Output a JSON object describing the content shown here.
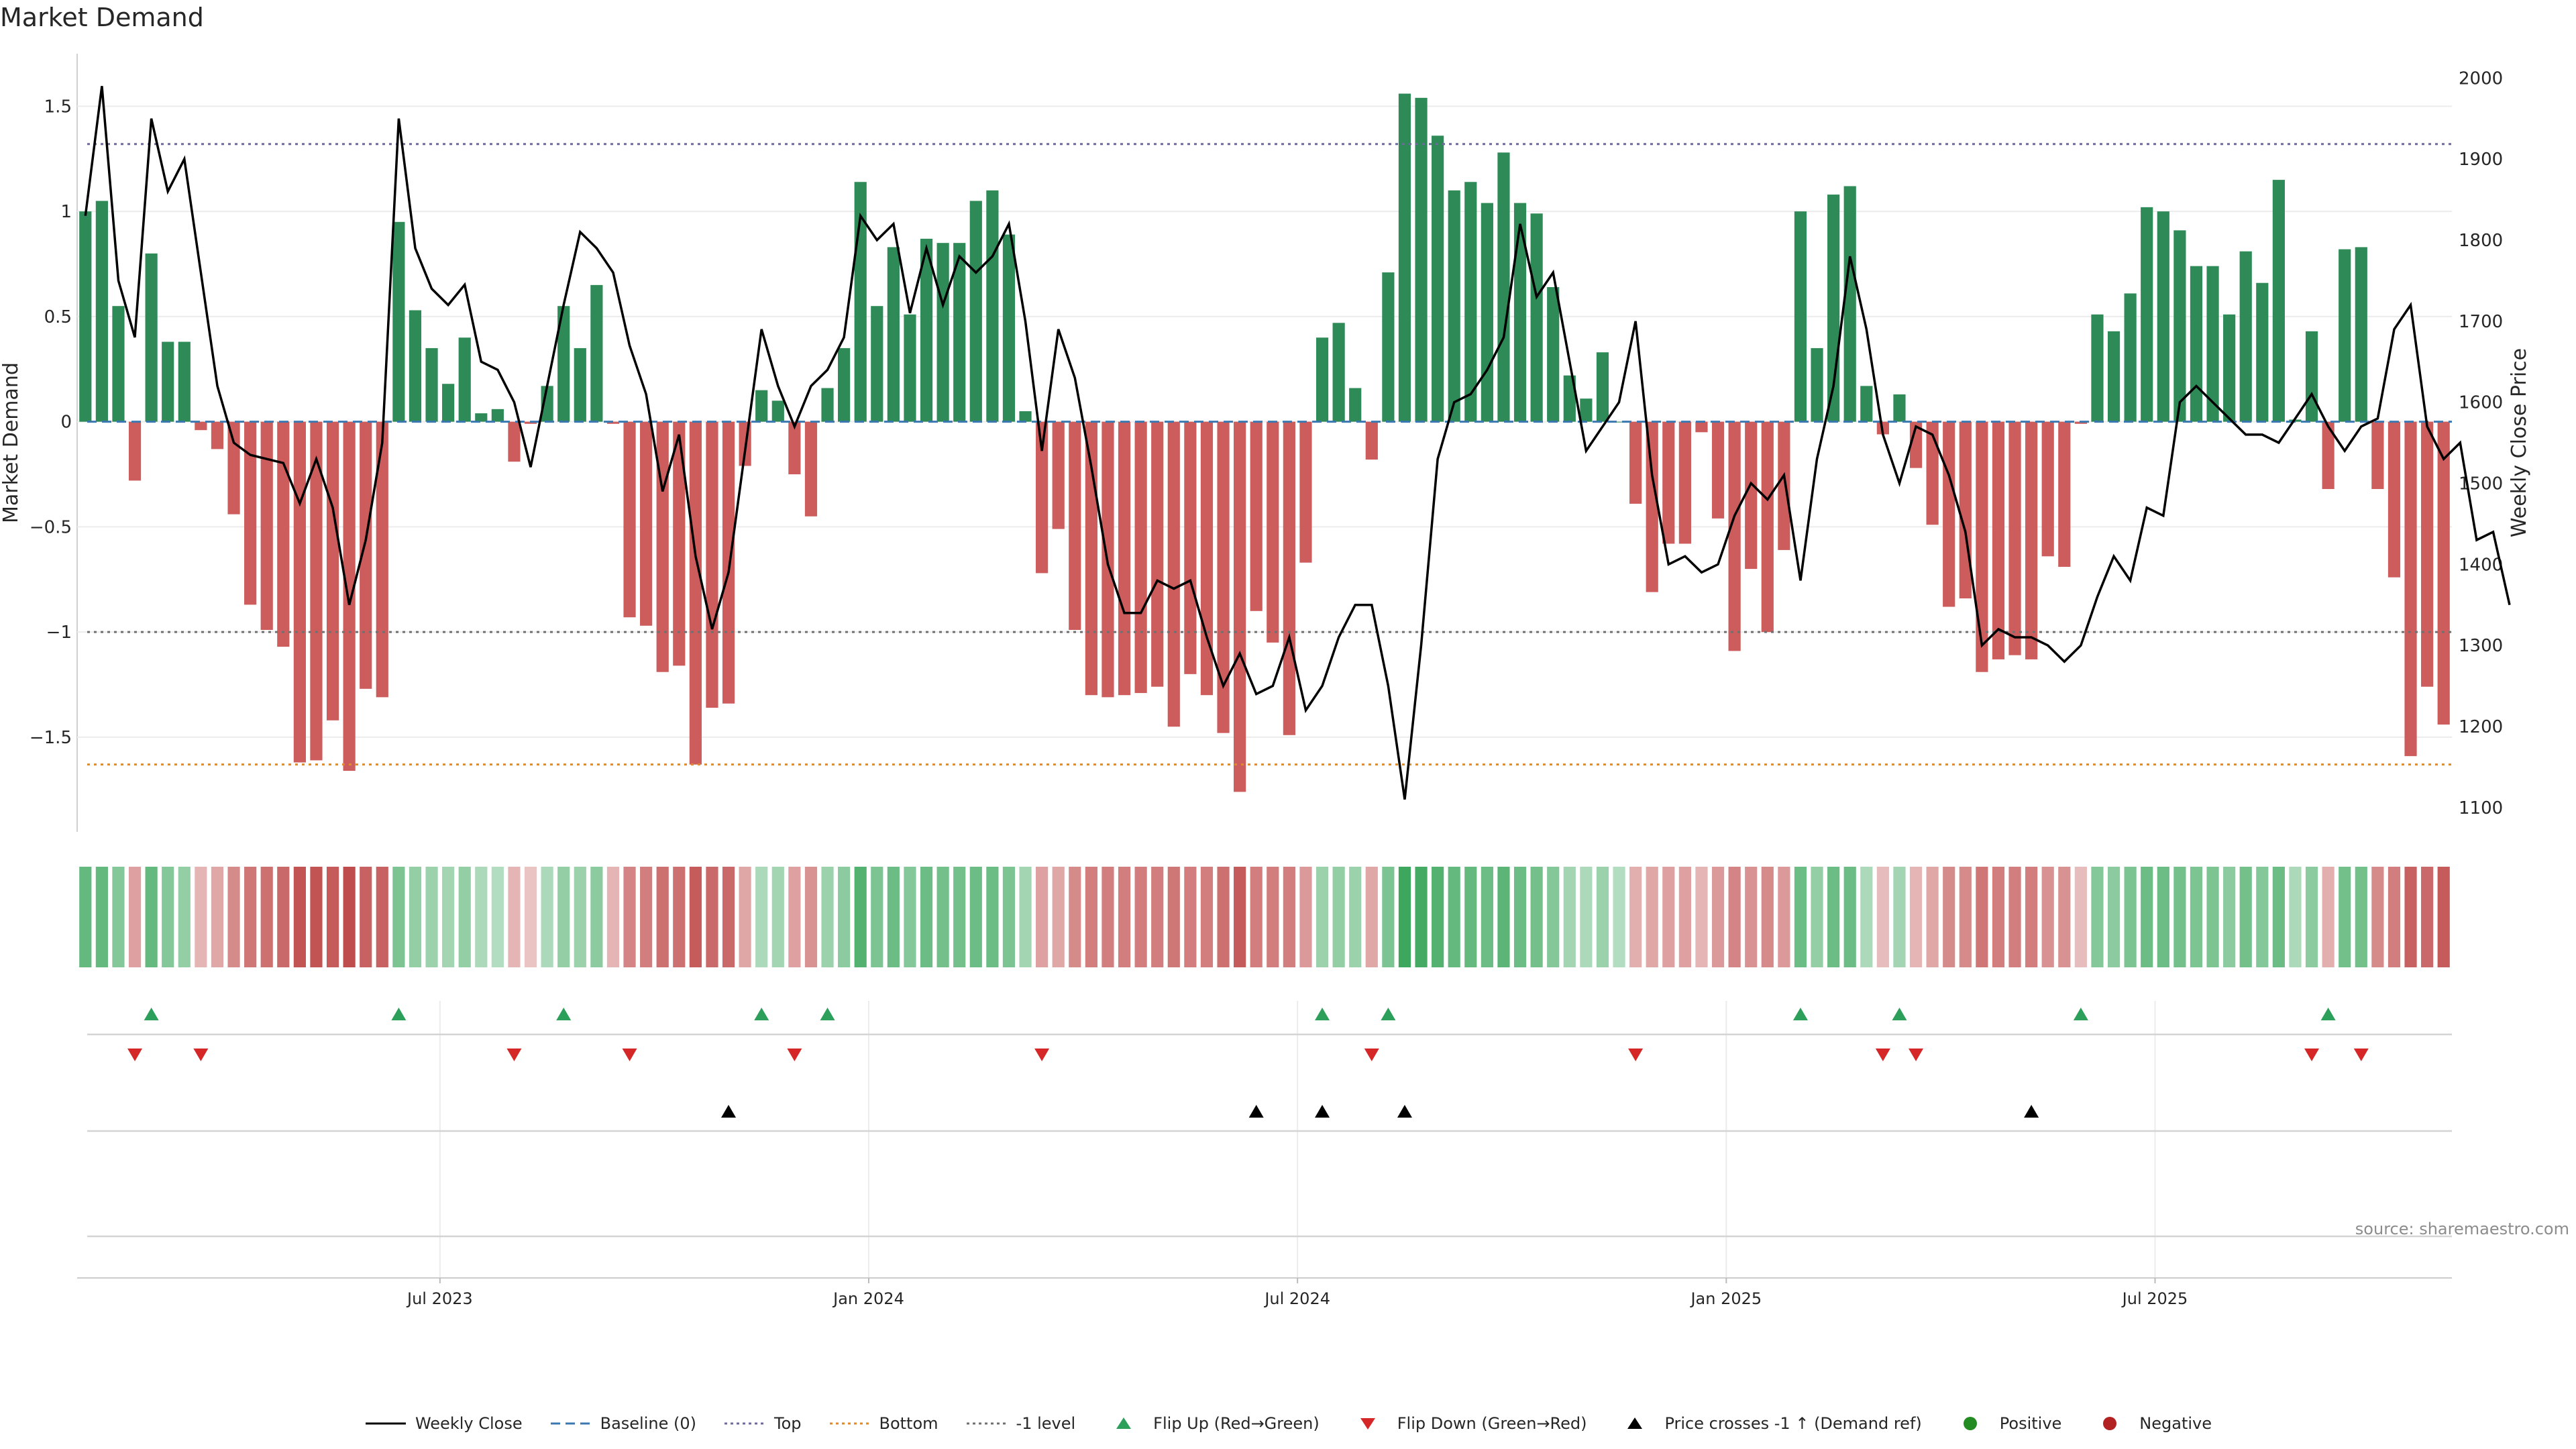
{
  "title": "Market Demand",
  "source": "source: sharemaestro.com",
  "legend": [
    {
      "key": "weekly_close",
      "label": "Weekly Close",
      "symbol": "line",
      "color": "#000000"
    },
    {
      "key": "baseline",
      "label": "Baseline (0)",
      "symbol": "dash",
      "color": "#3b78b0"
    },
    {
      "key": "top",
      "label": "Top",
      "symbol": "dot",
      "color": "#6e6a9e"
    },
    {
      "key": "bottom",
      "label": "Bottom",
      "symbol": "dot",
      "color": "#e08a2e"
    },
    {
      "key": "minus1",
      "label": "-1 level",
      "symbol": "dot",
      "color": "#707070"
    },
    {
      "key": "flip_up",
      "label": "Flip Up (Red→Green)",
      "symbol": "tri-up",
      "color": "#2ca05a"
    },
    {
      "key": "flip_down",
      "label": "Flip Down (Green→Red)",
      "symbol": "tri-down",
      "color": "#d62728"
    },
    {
      "key": "cross",
      "label": "Price crosses -1 ↑ (Demand ref)",
      "symbol": "tri-up",
      "color": "#000000"
    },
    {
      "key": "positive",
      "label": "Positive",
      "symbol": "circle",
      "color": "#228b22"
    },
    {
      "key": "negative",
      "label": "Negative",
      "symbol": "circle",
      "color": "#b22222"
    }
  ],
  "chart_data": {
    "type": "bar",
    "title": "Market Demand",
    "ylabel": "Market Demand",
    "y2label": "Weekly Close Price",
    "ylim": [
      -1.95,
      1.75
    ],
    "y2lim": [
      1070,
      2030
    ],
    "yticks": [
      -1.5,
      -1,
      -0.5,
      0,
      0.5,
      1,
      1.5
    ],
    "ytick_labels": [
      "−1.5",
      "−1",
      "−0.5",
      "0",
      "0.5",
      "1",
      "1.5"
    ],
    "y2ticks": [
      1100,
      1200,
      1300,
      1400,
      1500,
      1600,
      1700,
      1800,
      1900,
      2000
    ],
    "xtick_labels": [
      "Jul 2023",
      "Jan 2024",
      "Jul 2024",
      "Jan 2025",
      "Jul 2025"
    ],
    "xtick_weeks": [
      22,
      48,
      74,
      100,
      126
    ],
    "reference_lines": {
      "top": 1.32,
      "bottom": -1.63,
      "minus1": -1.0,
      "baseline": 0
    },
    "colors": {
      "positive": "#2e8b57",
      "negative": "#cd5c5c",
      "close": "#000000"
    },
    "demand": [
      1.0,
      1.05,
      0.55,
      -0.28,
      0.8,
      0.38,
      0.38,
      -0.04,
      -0.13,
      -0.44,
      -0.87,
      -0.99,
      -1.07,
      -1.62,
      -1.61,
      -1.42,
      -1.66,
      -1.27,
      -1.31,
      0.95,
      0.53,
      0.35,
      0.18,
      0.4,
      0.04,
      0.06,
      -0.19,
      -0.01,
      0.17,
      0.55,
      0.35,
      0.65,
      -0.01,
      -0.93,
      -0.97,
      -1.19,
      -1.16,
      -1.63,
      -1.36,
      -1.34,
      -0.21,
      0.15,
      0.1,
      -0.25,
      -0.45,
      0.16,
      0.35,
      1.14,
      0.55,
      0.83,
      0.51,
      0.87,
      0.85,
      0.85,
      1.05,
      1.1,
      0.89,
      0.05,
      -0.72,
      -0.51,
      -0.99,
      -1.3,
      -1.31,
      -1.3,
      -1.29,
      -1.26,
      -1.45,
      -1.2,
      -1.3,
      -1.48,
      -1.76,
      -0.9,
      -1.05,
      -1.49,
      -0.67,
      0.4,
      0.47,
      0.16,
      -0.18,
      0.71,
      1.56,
      1.54,
      1.36,
      1.1,
      1.14,
      1.04,
      1.28,
      1.04,
      0.99,
      0.64,
      0.22,
      0.11,
      0.33,
      0.0,
      -0.39,
      -0.81,
      -0.58,
      -0.58,
      -0.05,
      -0.46,
      -1.09,
      -0.7,
      -1.0,
      -0.61,
      1.0,
      0.35,
      1.08,
      1.12,
      0.17,
      -0.06,
      0.13,
      -0.22,
      -0.49,
      -0.88,
      -0.84,
      -1.19,
      -1.13,
      -1.11,
      -1.13,
      -0.64,
      -0.69,
      -0.01,
      0.51,
      0.43,
      0.61,
      1.02,
      1.0,
      0.91,
      0.74,
      0.74,
      0.51,
      0.81,
      0.66,
      1.15,
      0.01,
      0.43,
      -0.32,
      0.82,
      0.83,
      -0.32,
      -0.74,
      -1.59,
      -1.26,
      -1.44
    ],
    "close": [
      1830,
      1990,
      1750,
      1680,
      1950,
      1860,
      1900,
      1760,
      1620,
      1550,
      1535,
      1530,
      1525,
      1475,
      1530,
      1470,
      1350,
      1430,
      1550,
      1950,
      1790,
      1740,
      1720,
      1745,
      1650,
      1640,
      1600,
      1520,
      1620,
      1720,
      1810,
      1790,
      1760,
      1670,
      1610,
      1490,
      1560,
      1410,
      1320,
      1390,
      1540,
      1690,
      1620,
      1570,
      1620,
      1640,
      1680,
      1830,
      1800,
      1820,
      1710,
      1790,
      1720,
      1780,
      1760,
      1780,
      1820,
      1700,
      1540,
      1690,
      1630,
      1520,
      1400,
      1340,
      1340,
      1380,
      1370,
      1380,
      1310,
      1250,
      1290,
      1240,
      1250,
      1310,
      1220,
      1250,
      1310,
      1350,
      1350,
      1250,
      1110,
      1300,
      1530,
      1600,
      1610,
      1640,
      1680,
      1820,
      1730,
      1760,
      1650,
      1540,
      1570,
      1600,
      1700,
      1510,
      1400,
      1410,
      1390,
      1400,
      1460,
      1500,
      1480,
      1510,
      1380,
      1530,
      1620,
      1780,
      1690,
      1560,
      1500,
      1570,
      1560,
      1510,
      1440,
      1300,
      1320,
      1310,
      1310,
      1300,
      1280,
      1300,
      1360,
      1410,
      1380,
      1470,
      1460,
      1600,
      1620,
      1600,
      1580,
      1560,
      1560,
      1550,
      1580,
      1610,
      1570,
      1540,
      1570,
      1580,
      1690,
      1720,
      1570,
      1530,
      1550,
      1430,
      1440,
      1350
    ],
    "strip_intensity": [
      0.65,
      0.65,
      0.45,
      0.35,
      0.65,
      0.45,
      0.35,
      0.2,
      0.3,
      0.5,
      0.65,
      0.7,
      0.75,
      0.9,
      0.9,
      0.85,
      0.95,
      0.8,
      0.8,
      0.5,
      0.35,
      0.3,
      0.25,
      0.35,
      0.2,
      0.15,
      0.2,
      0.1,
      0.2,
      0.35,
      0.3,
      0.4,
      0.2,
      0.55,
      0.6,
      0.7,
      0.7,
      0.85,
      0.75,
      0.75,
      0.3,
      0.2,
      0.25,
      0.35,
      0.45,
      0.3,
      0.4,
      0.75,
      0.5,
      0.6,
      0.45,
      0.6,
      0.55,
      0.55,
      0.6,
      0.6,
      0.5,
      0.25,
      0.35,
      0.3,
      0.5,
      0.6,
      0.6,
      0.6,
      0.6,
      0.6,
      0.65,
      0.6,
      0.6,
      0.7,
      0.85,
      0.6,
      0.6,
      0.6,
      0.4,
      0.3,
      0.35,
      0.3,
      0.3,
      0.5,
      0.9,
      0.85,
      0.75,
      0.65,
      0.65,
      0.6,
      0.7,
      0.6,
      0.55,
      0.45,
      0.25,
      0.2,
      0.3,
      0.15,
      0.25,
      0.3,
      0.35,
      0.35,
      0.2,
      0.4,
      0.55,
      0.45,
      0.5,
      0.4,
      0.6,
      0.35,
      0.6,
      0.6,
      0.2,
      0.15,
      0.25,
      0.2,
      0.3,
      0.5,
      0.5,
      0.65,
      0.6,
      0.6,
      0.6,
      0.45,
      0.45,
      0.15,
      0.45,
      0.4,
      0.5,
      0.6,
      0.6,
      0.55,
      0.5,
      0.5,
      0.4,
      0.55,
      0.45,
      0.6,
      0.2,
      0.4,
      0.25,
      0.55,
      0.55,
      0.5,
      0.6,
      0.8,
      0.75,
      0.85
    ],
    "flip_up_weeks": [
      4,
      19,
      29,
      41,
      45,
      75,
      79,
      104,
      110,
      121,
      136
    ],
    "flip_down_weeks": [
      3,
      7,
      26,
      33,
      43,
      58,
      78,
      94,
      109,
      111,
      135,
      138
    ],
    "cross_weeks": [
      39,
      71,
      75,
      80,
      118
    ]
  }
}
